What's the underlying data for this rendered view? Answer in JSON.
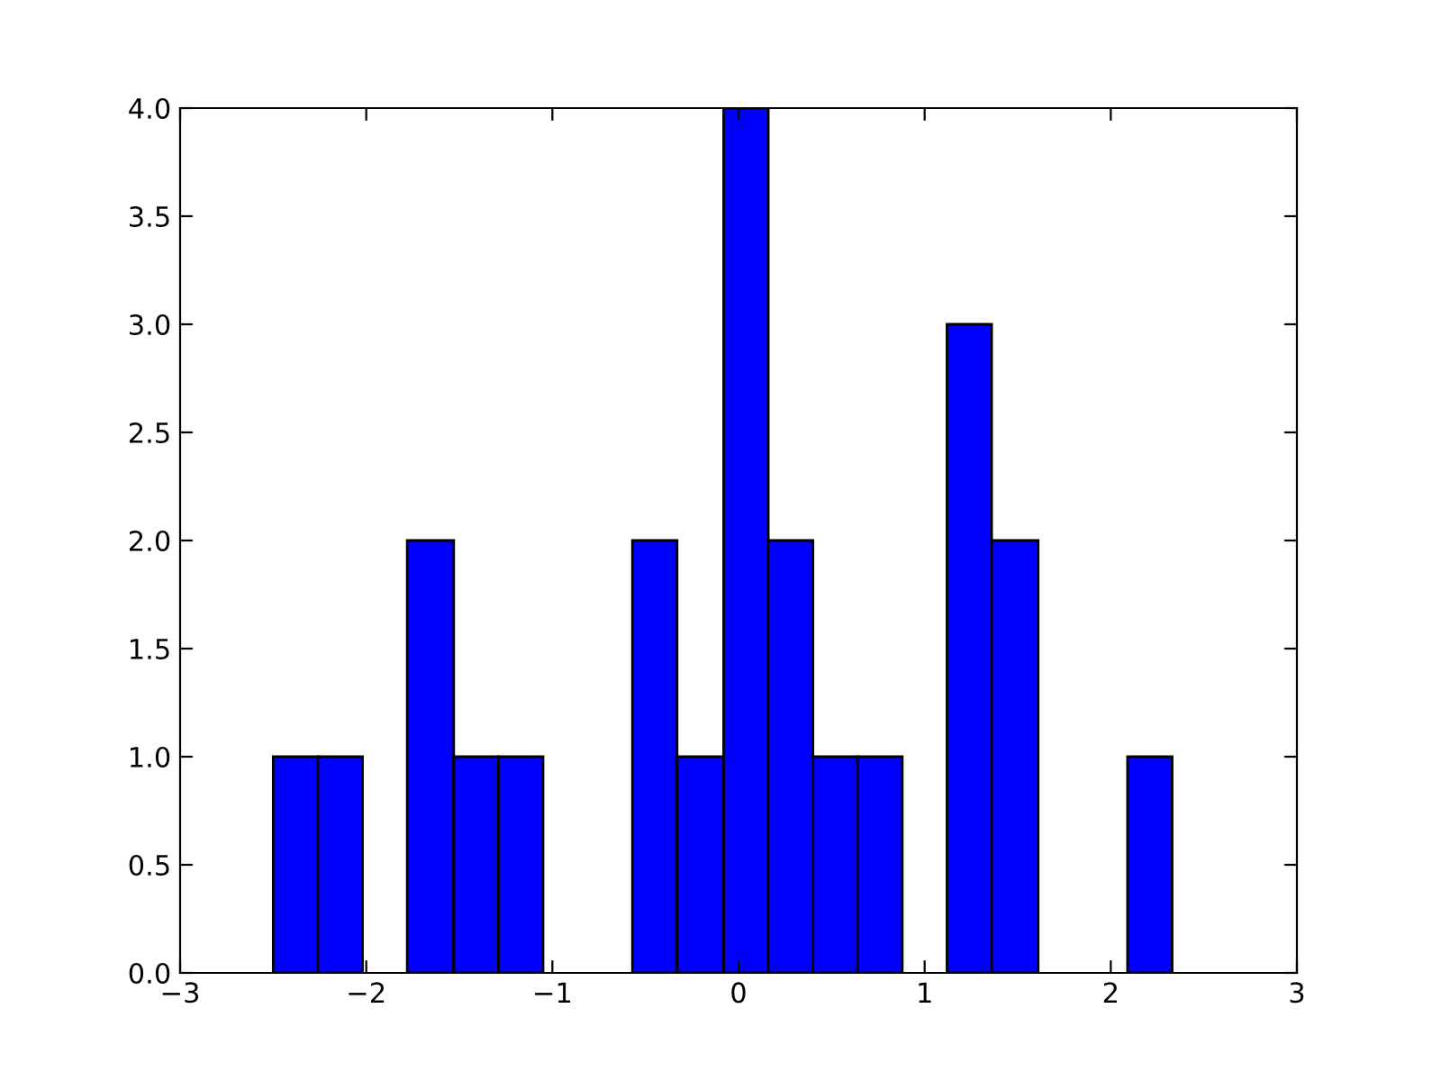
{
  "chart_data": {
    "type": "histogram",
    "bins": [
      -2.5,
      -2.26,
      -2.02,
      -1.78,
      -1.53,
      -1.29,
      -1.05,
      -0.57,
      -0.33,
      -0.08,
      0.16,
      0.4,
      0.64,
      0.88,
      1.12,
      1.36,
      1.61,
      2.09,
      2.33
    ],
    "values": [
      1,
      1,
      0,
      2,
      1,
      1,
      0,
      2,
      1,
      4,
      2,
      1,
      1,
      0,
      3,
      2,
      0,
      1
    ],
    "color": "#0000ff",
    "xlim": [
      -3,
      3
    ],
    "xticks": [
      {
        "value": -3,
        "label": "−3"
      },
      {
        "value": -2,
        "label": "−2"
      },
      {
        "value": -1,
        "label": "−1"
      },
      0,
      1,
      2,
      3
    ],
    "ylim": [
      0,
      4
    ],
    "yticks": [
      {
        "value": 0,
        "label": "0.0"
      },
      {
        "value": 0.5,
        "label": "0.5"
      },
      {
        "value": 1,
        "label": "1.0"
      },
      {
        "value": 1.5,
        "label": "1.5"
      },
      {
        "value": 2,
        "label": "2.0"
      },
      {
        "value": 2.5,
        "label": "2.5"
      },
      {
        "value": 3,
        "label": "3.0"
      },
      {
        "value": 3.5,
        "label": "3.5"
      },
      {
        "value": 4,
        "label": "4.0"
      }
    ],
    "grid": false
  }
}
